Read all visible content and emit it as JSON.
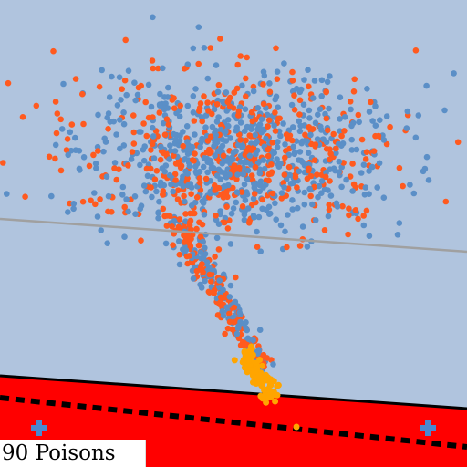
{
  "caption": "90 Poisons",
  "colors": {
    "background": "#b0c4de",
    "region": "#ff0000",
    "blue_points": "#5b8fc7",
    "orange_points": "#ff5a1f",
    "poison_points": "#ffa500",
    "boundary_line": "#a0a0a0",
    "markers": "#4a88d0"
  },
  "scene": {
    "cloud_blue_count": 700,
    "cloud_orange_count": 420,
    "stem_count": 260,
    "poison_count": 90,
    "marker_icon": "plus-cross-icon"
  }
}
